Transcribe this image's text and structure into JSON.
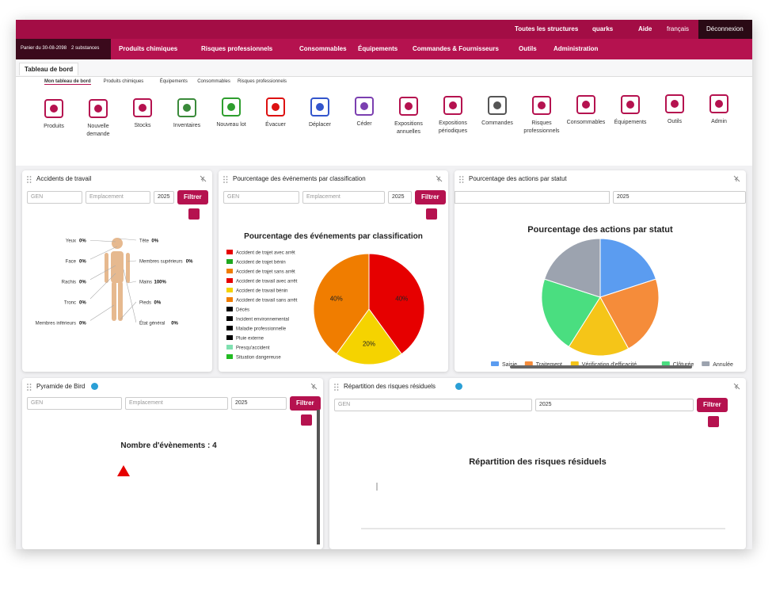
{
  "topbar": {
    "cart": "Panier du 30-08-2098",
    "substances": "2 substances",
    "structures": "Toutes les structures",
    "user": "quarks",
    "help": "Aide",
    "language": "français",
    "logout": "Déconnexion"
  },
  "menu": [
    "Produits chimiques",
    "Risques professionnels",
    "Consommables",
    "Équipements",
    "Commandes & Fournisseurs",
    "Outils",
    "Administration"
  ],
  "tab": "Tableau de bord",
  "subtabs": [
    "Mon tableau de bord",
    "Produits chimiques",
    "Équipements",
    "Consommables",
    "Risques professionnels"
  ],
  "toolbar": [
    "Produits",
    "Nouvelle demande",
    "Stocks",
    "Inventaires",
    "Nouveau lot",
    "Évacuer",
    "Déplacer",
    "Céder",
    "Expositions annuelles",
    "Expositions périodiques",
    "Commandes",
    "Risques professionnels",
    "Consommables",
    "Équipements",
    "Outils",
    "Admin"
  ],
  "widgets": {
    "accidents": {
      "title": "Accidents de travail",
      "filters": {
        "gen": "GEN",
        "location": "Emplacement",
        "year": "2025",
        "button": "Filtrer"
      },
      "body_parts": [
        {
          "label": "Yeux",
          "value": "0%"
        },
        {
          "label": "Face",
          "value": "0%"
        },
        {
          "label": "Rachis",
          "value": "0%"
        },
        {
          "label": "Tronc",
          "value": "0%"
        },
        {
          "label": "Membres inférieurs",
          "value": "0%"
        },
        {
          "label": "Tête",
          "value": "0%"
        },
        {
          "label": "Membres supérieurs",
          "value": "0%"
        },
        {
          "label": "Mains",
          "value": "100%"
        },
        {
          "label": "Pieds",
          "value": "0%"
        },
        {
          "label": "État général",
          "value": "0%"
        }
      ]
    },
    "classification": {
      "title": "Pourcentage des événements par classification",
      "filters": {
        "gen": "GEN",
        "location": "Emplacement",
        "year": "2025",
        "button": "Filtrer"
      }
    },
    "actions": {
      "title": "Pourcentage des actions par statut",
      "filters": {
        "year": "2025"
      }
    },
    "pyramid": {
      "title": "Pyramide de Bird",
      "filters": {
        "gen": "GEN",
        "location": "Emplacement",
        "year": "2025",
        "button": "Filtrer"
      },
      "count": "Nombre d'évènements : 4"
    },
    "residual": {
      "title": "Répartition des risques résiduels",
      "filters": {
        "gen": "GEN",
        "year": "2025",
        "button": "Filtrer"
      },
      "chart_title": "Répartition des risques résiduels"
    }
  },
  "chart_data": [
    {
      "type": "pie",
      "title": "Pourcentage des événements par classification",
      "categories": [
        "Accident de trajet avec arrêt",
        "Accident de trajet bénin",
        "Accident de trajet sans arrêt",
        "Accident de travail avec arrêt",
        "Accident de travail bénin",
        "Accident de travail sans arrêt",
        "Décès",
        "Incident environnemental",
        "Maladie professionnelle",
        "Pluie externe",
        "Presqu'accident",
        "Situation dangereuse"
      ],
      "values": [
        0,
        0,
        0,
        40,
        20,
        40,
        0,
        0,
        0,
        0,
        0,
        0
      ],
      "value_labels": [
        null,
        null,
        null,
        "40%",
        "20%",
        "40%",
        null,
        null,
        null,
        null,
        null,
        null
      ],
      "colors": [
        "#e60000",
        "#1fa81f",
        "#f07d00",
        "#e60000",
        "#f5d300",
        "#f07d00",
        "#000000",
        "#000000",
        "#000000",
        "#000000",
        "#7fe0b0",
        "#22bb22"
      ],
      "legend": "left"
    },
    {
      "type": "pie",
      "title": "Pourcentage des actions par statut",
      "categories": [
        "Saisie",
        "Traitement",
        "Vérification d'efficacité",
        "Clôturée",
        "Annulée"
      ],
      "values": [
        20,
        22,
        17,
        21,
        20
      ],
      "colors": [
        "#5b9cf0",
        "#f58c3a",
        "#f5c518",
        "#4ade80",
        "#9ca3af"
      ],
      "legend": "bottom"
    }
  ]
}
